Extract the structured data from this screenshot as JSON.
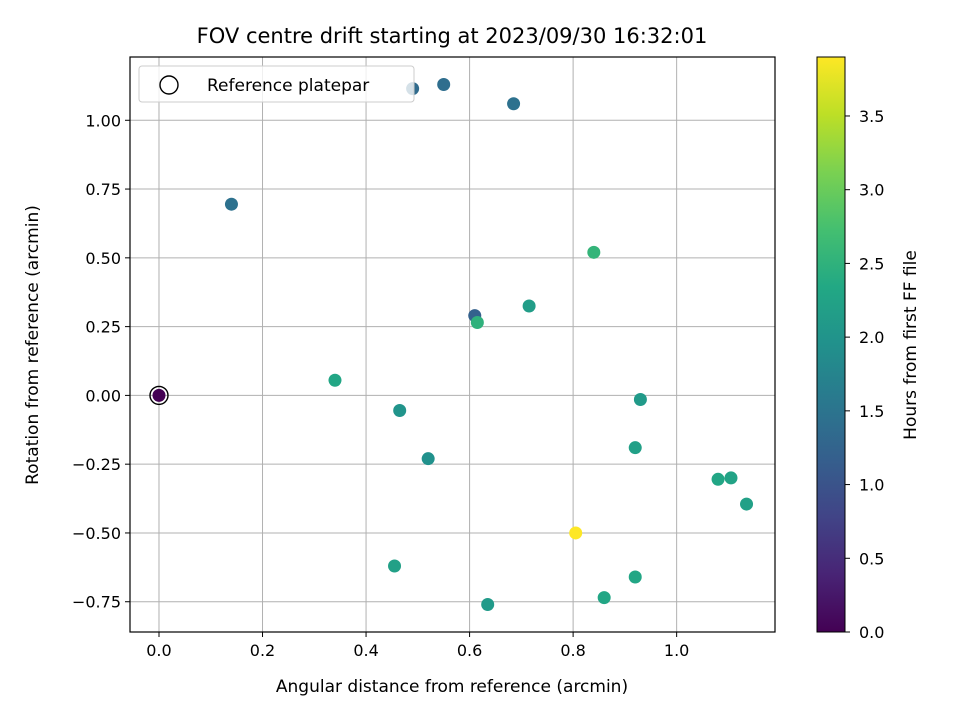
{
  "chart_data": {
    "type": "scatter",
    "title": "FOV centre drift starting at 2023/09/30 16:32:01",
    "xlabel": "Angular distance from reference (arcmin)",
    "ylabel": "Rotation from reference (arcmin)",
    "xlim": [
      -0.056,
      1.19
    ],
    "ylim": [
      -0.86,
      1.23
    ],
    "xticks": [
      0.0,
      0.2,
      0.4,
      0.6,
      0.8,
      1.0
    ],
    "xtick_labels": [
      "0.0",
      "0.2",
      "0.4",
      "0.6",
      "0.8",
      "1.0"
    ],
    "yticks": [
      -0.75,
      -0.5,
      -0.25,
      0.0,
      0.25,
      0.5,
      0.75,
      1.0
    ],
    "ytick_labels": [
      "−0.75",
      "−0.50",
      "−0.25",
      "0.00",
      "0.25",
      "0.50",
      "0.75",
      "1.00"
    ],
    "grid": true,
    "legend": {
      "position": "top-left",
      "entries": [
        "Reference platepar"
      ]
    },
    "colorbar": {
      "label": "Hours from first FF file",
      "colormap": "viridis",
      "range": [
        0.0,
        3.9
      ],
      "ticks": [
        0.0,
        0.5,
        1.0,
        1.5,
        2.0,
        2.5,
        3.0,
        3.5
      ],
      "tick_labels": [
        "0.0",
        "0.5",
        "1.0",
        "1.5",
        "2.0",
        "2.5",
        "3.0",
        "3.5"
      ]
    },
    "reference_point": {
      "x": 0.0,
      "y": 0.0
    },
    "points": [
      {
        "x": 0.0,
        "y": 0.0,
        "hours": 0.0
      },
      {
        "x": 0.14,
        "y": 0.695,
        "hours": 1.45
      },
      {
        "x": 0.49,
        "y": 1.115,
        "hours": 1.35
      },
      {
        "x": 0.55,
        "y": 1.13,
        "hours": 1.4
      },
      {
        "x": 0.685,
        "y": 1.06,
        "hours": 1.45
      },
      {
        "x": 0.61,
        "y": 0.29,
        "hours": 1.2
      },
      {
        "x": 0.615,
        "y": 0.265,
        "hours": 2.5
      },
      {
        "x": 0.715,
        "y": 0.325,
        "hours": 2.15
      },
      {
        "x": 0.84,
        "y": 0.52,
        "hours": 2.55
      },
      {
        "x": 0.34,
        "y": 0.055,
        "hours": 2.3
      },
      {
        "x": 0.465,
        "y": -0.055,
        "hours": 2.0
      },
      {
        "x": 0.52,
        "y": -0.23,
        "hours": 1.95
      },
      {
        "x": 0.93,
        "y": -0.015,
        "hours": 2.1
      },
      {
        "x": 0.92,
        "y": -0.19,
        "hours": 2.2
      },
      {
        "x": 1.08,
        "y": -0.305,
        "hours": 2.3
      },
      {
        "x": 1.105,
        "y": -0.3,
        "hours": 2.25
      },
      {
        "x": 1.135,
        "y": -0.395,
        "hours": 2.2
      },
      {
        "x": 0.805,
        "y": -0.5,
        "hours": 3.9
      },
      {
        "x": 0.455,
        "y": -0.62,
        "hours": 2.2
      },
      {
        "x": 0.635,
        "y": -0.76,
        "hours": 2.1
      },
      {
        "x": 0.86,
        "y": -0.735,
        "hours": 2.3
      },
      {
        "x": 0.92,
        "y": -0.66,
        "hours": 2.3
      }
    ]
  }
}
